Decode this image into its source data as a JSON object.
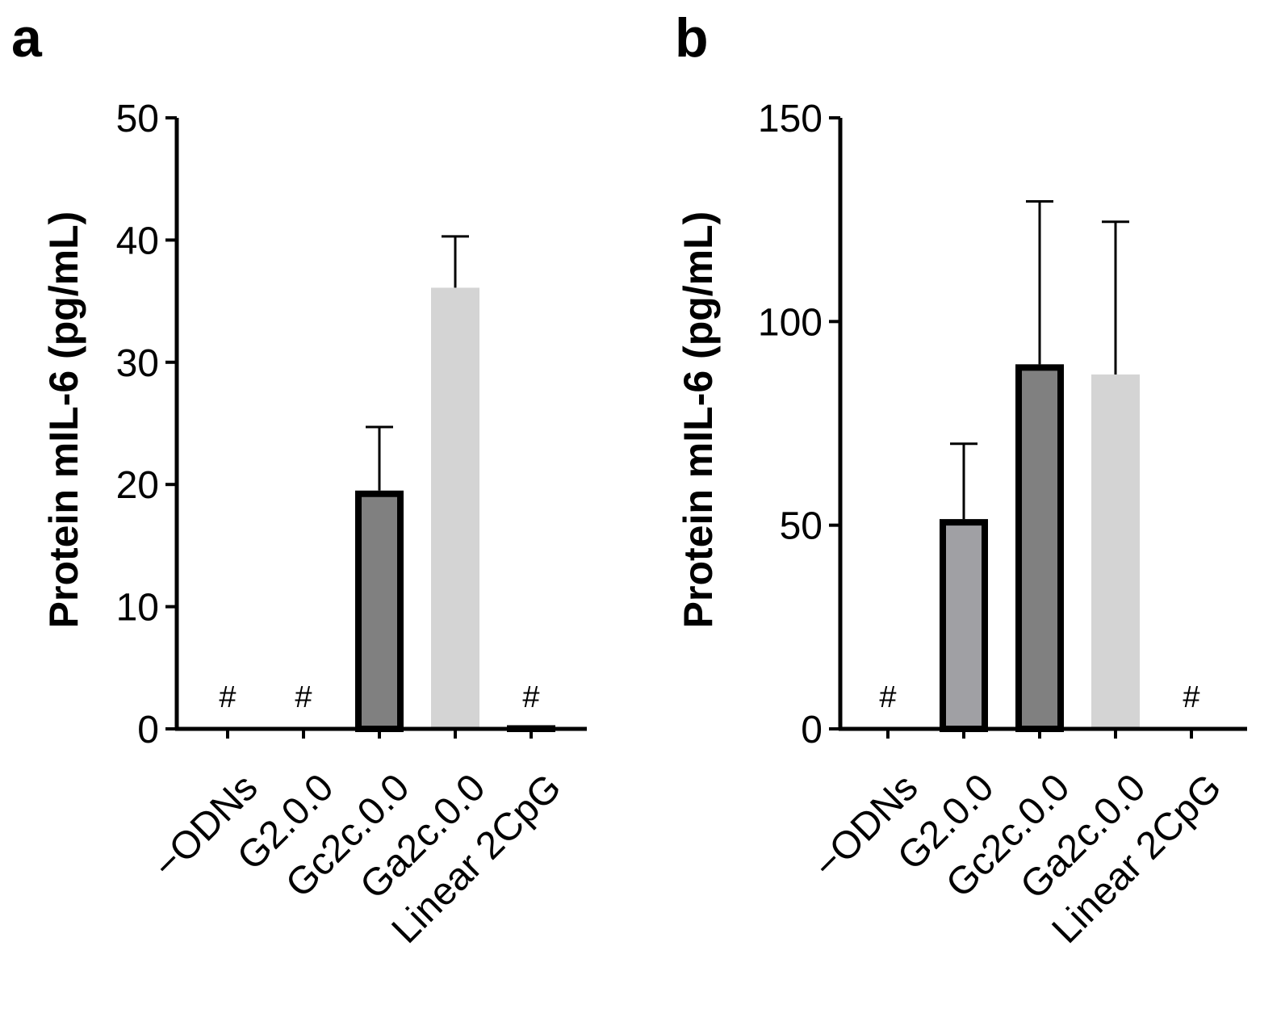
{
  "chart_data": [
    {
      "panel_label": "a",
      "type": "bar",
      "ylabel": "Protein mIL-6 (pg/mL)",
      "xlabel": "",
      "ylim": [
        0,
        50
      ],
      "yticks": [
        0,
        10,
        20,
        30,
        40,
        50
      ],
      "categories": [
        "−ODNs",
        "G2.0.0",
        "Gc2c.0.0",
        "Ga2c.0.0",
        "Linear 2CpG"
      ],
      "values": [
        0,
        0,
        19.5,
        36.1,
        0.3
      ],
      "errors": [
        0,
        0,
        5.2,
        4.2,
        0
      ],
      "annotations": [
        "#",
        "#",
        "",
        "",
        "#"
      ],
      "colors": [
        "#a0a0a4",
        "#a0a0a4",
        "#808080",
        "#d4d4d4",
        "#a0a0a4"
      ],
      "outlined": [
        true,
        true,
        true,
        false,
        true
      ]
    },
    {
      "panel_label": "b",
      "type": "bar",
      "ylabel": "Protein mIL-6 (pg/mL)",
      "xlabel": "",
      "ylim": [
        0,
        150
      ],
      "yticks": [
        0,
        50,
        100,
        150
      ],
      "categories": [
        "−ODNs",
        "G2.0.0",
        "Gc2c.0.0",
        "Ga2c.0.0",
        "Linear 2CpG"
      ],
      "values": [
        0.5,
        51.5,
        89.5,
        87,
        0.5
      ],
      "errors": [
        0,
        18.5,
        40,
        37.5,
        0
      ],
      "annotations": [
        "#",
        "",
        "",
        "",
        "#"
      ],
      "colors": [
        "#a0a0a4",
        "#a0a0a4",
        "#808080",
        "#d4d4d4",
        "#a0a0a4"
      ],
      "outlined": [
        true,
        true,
        true,
        false,
        true
      ]
    }
  ]
}
